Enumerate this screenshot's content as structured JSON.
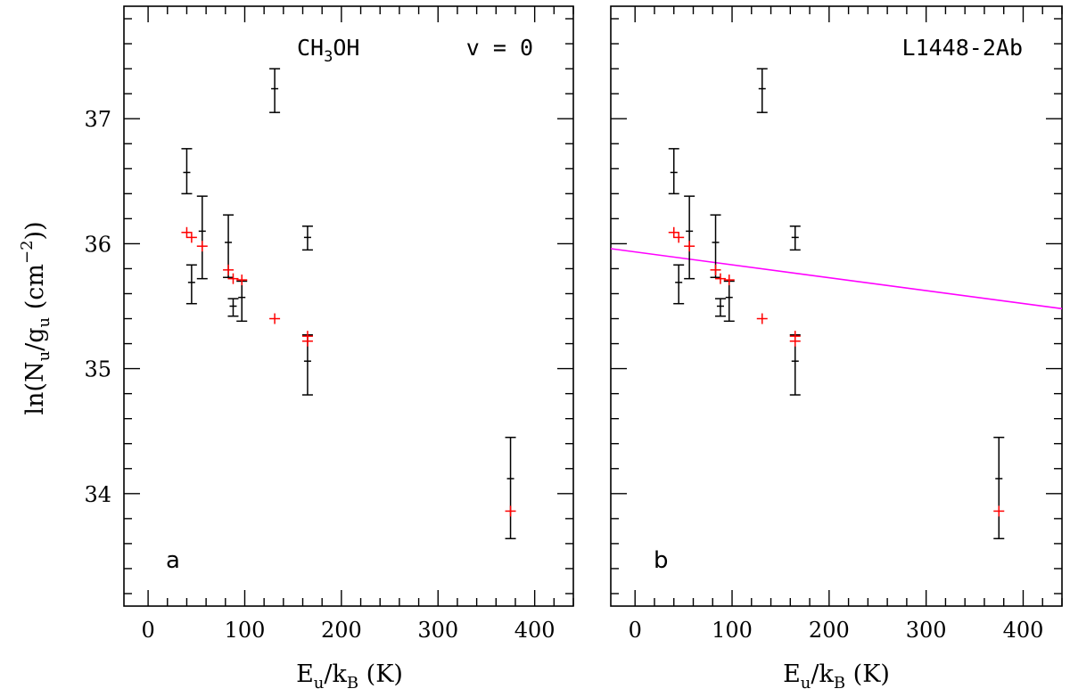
{
  "chart_data": [
    {
      "type": "scatter",
      "panel_letter": "a",
      "molecule": "CH3OH",
      "molecule_parts": {
        "base": "CH",
        "sub": "3",
        "tail": "OH"
      },
      "state_label": "v = 0",
      "xlabel": "Eu/kB (K)",
      "ylabel": "ln(Nu/gu (cm^-2))",
      "xlim": [
        -25,
        440
      ],
      "ylim": [
        33.1,
        37.9
      ],
      "x_ticks": [
        0,
        100,
        200,
        300,
        400
      ],
      "y_ticks": [
        34,
        35,
        36,
        37
      ],
      "observed": [
        {
          "x": 40,
          "y": 36.57,
          "lo": 36.4,
          "hi": 36.76
        },
        {
          "x": 45,
          "y": 35.69,
          "lo": 35.52,
          "hi": 35.83
        },
        {
          "x": 56,
          "y": 36.1,
          "lo": 35.72,
          "hi": 36.38
        },
        {
          "x": 83,
          "y": 36.01,
          "lo": 35.73,
          "hi": 36.23
        },
        {
          "x": 88,
          "y": 35.5,
          "lo": 35.42,
          "hi": 35.56
        },
        {
          "x": 97,
          "y": 35.57,
          "lo": 35.38,
          "hi": 35.7
        },
        {
          "x": 131,
          "y": 37.24,
          "lo": 37.05,
          "hi": 37.4
        },
        {
          "x": 165,
          "y": 36.05,
          "lo": 35.95,
          "hi": 36.14
        },
        {
          "x": 165,
          "y": 35.06,
          "lo": 34.79,
          "hi": 35.27
        },
        {
          "x": 375,
          "y": 34.12,
          "lo": 33.64,
          "hi": 34.45
        }
      ],
      "model": [
        {
          "x": 40,
          "y": 36.09
        },
        {
          "x": 45,
          "y": 36.05
        },
        {
          "x": 56,
          "y": 35.98
        },
        {
          "x": 83,
          "y": 35.79
        },
        {
          "x": 88,
          "y": 35.72
        },
        {
          "x": 97,
          "y": 35.71
        },
        {
          "x": 131,
          "y": 35.4
        },
        {
          "x": 165,
          "y": 35.26
        },
        {
          "x": 165,
          "y": 35.22
        },
        {
          "x": 375,
          "y": 33.86
        }
      ],
      "fit_line": null,
      "colors": {
        "observed": "#000000",
        "model": "#ff0000",
        "fit": "#ff00ff"
      }
    },
    {
      "type": "scatter",
      "panel_letter": "b",
      "source_label": "L1448-2Ab",
      "xlabel": "Eu/kB (K)",
      "xlim": [
        -25,
        440
      ],
      "ylim": [
        33.1,
        37.9
      ],
      "x_ticks": [
        0,
        100,
        200,
        300,
        400
      ],
      "y_ticks": [
        34,
        35,
        36,
        37
      ],
      "observed": [
        {
          "x": 40,
          "y": 36.57,
          "lo": 36.4,
          "hi": 36.76
        },
        {
          "x": 45,
          "y": 35.69,
          "lo": 35.52,
          "hi": 35.83
        },
        {
          "x": 56,
          "y": 36.1,
          "lo": 35.72,
          "hi": 36.38
        },
        {
          "x": 83,
          "y": 36.01,
          "lo": 35.73,
          "hi": 36.23
        },
        {
          "x": 88,
          "y": 35.5,
          "lo": 35.42,
          "hi": 35.56
        },
        {
          "x": 97,
          "y": 35.57,
          "lo": 35.38,
          "hi": 35.7
        },
        {
          "x": 131,
          "y": 37.24,
          "lo": 37.05,
          "hi": 37.4
        },
        {
          "x": 165,
          "y": 36.05,
          "lo": 35.95,
          "hi": 36.14
        },
        {
          "x": 165,
          "y": 35.06,
          "lo": 34.79,
          "hi": 35.27
        },
        {
          "x": 375,
          "y": 34.12,
          "lo": 33.64,
          "hi": 34.45
        }
      ],
      "model": [
        {
          "x": 40,
          "y": 36.09
        },
        {
          "x": 45,
          "y": 36.05
        },
        {
          "x": 56,
          "y": 35.98
        },
        {
          "x": 83,
          "y": 35.79
        },
        {
          "x": 88,
          "y": 35.72
        },
        {
          "x": 97,
          "y": 35.71
        },
        {
          "x": 131,
          "y": 35.4
        },
        {
          "x": 165,
          "y": 35.26
        },
        {
          "x": 165,
          "y": 35.22
        },
        {
          "x": 375,
          "y": 33.86
        }
      ],
      "fit_line": {
        "x0": -25,
        "y0": 35.96,
        "x1": 440,
        "y1": 35.48
      },
      "colors": {
        "observed": "#000000",
        "model": "#ff0000",
        "fit": "#ff00ff"
      }
    }
  ]
}
